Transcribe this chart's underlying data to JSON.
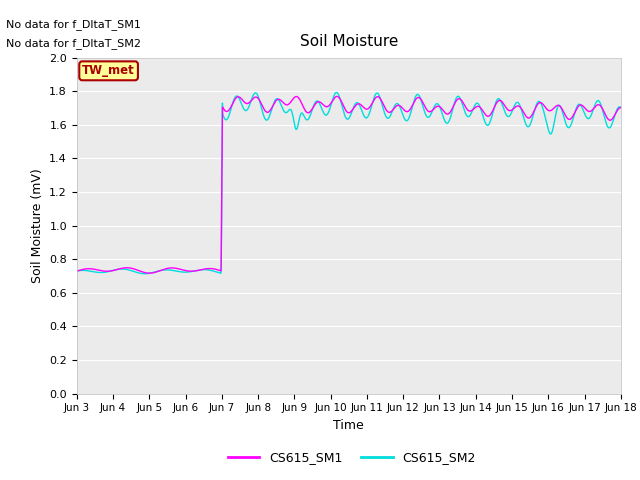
{
  "title": "Soil Moisture",
  "xlabel": "Time",
  "ylabel": "Soil Moisture (mV)",
  "ylim": [
    0.0,
    2.0
  ],
  "yticks": [
    0.0,
    0.2,
    0.4,
    0.6,
    0.8,
    1.0,
    1.2,
    1.4,
    1.6,
    1.8,
    2.0
  ],
  "bg_color": "#ebebeb",
  "grid_color": "#ffffff",
  "line1_color": "#ff00ff",
  "line2_color": "#00dddd",
  "annotations_text": [
    "No data for f_DltaT_SM1",
    "No data for f_DltaT_SM2"
  ],
  "box_label": "TW_met",
  "box_facecolor": "#ffff99",
  "box_edgecolor": "#aa0000",
  "box_textcolor": "#aa0000",
  "legend_label1": "CS615_SM1",
  "legend_label2": "CS615_SM2",
  "x_tick_labels": [
    "Jun 3",
    "Jun 4",
    "Jun 5",
    "Jun 6",
    "Jun 7",
    "Jun 8",
    "Jun 9",
    "Jun 10",
    "Jun 11",
    "Jun 12",
    "Jun 13",
    "Jun 14",
    "Jun 15",
    "Jun 16",
    "Jun 17",
    "Jun 18"
  ],
  "x_tick_positions": [
    0,
    1,
    2,
    3,
    4,
    5,
    6,
    7,
    8,
    9,
    10,
    11,
    12,
    13,
    14,
    15
  ]
}
